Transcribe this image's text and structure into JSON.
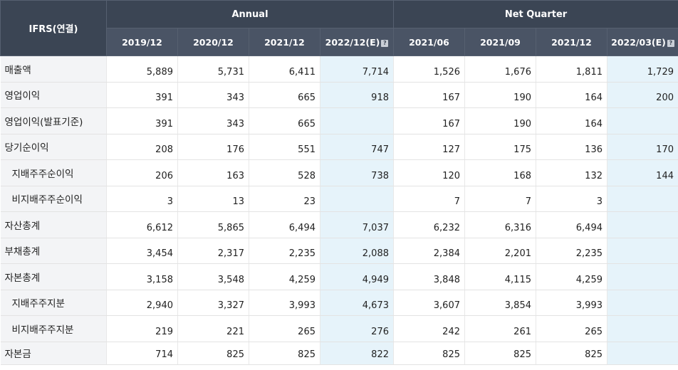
{
  "header": {
    "label": "IFRS(연결)",
    "annual": "Annual",
    "quarter": "Net Quarter",
    "annual_cols": [
      "2019/12",
      "2020/12",
      "2021/12",
      "2022/12(E)"
    ],
    "quarter_cols": [
      "2021/06",
      "2021/09",
      "2021/12",
      "2022/03(E)"
    ]
  },
  "rows": [
    {
      "label": "매출액",
      "values": [
        "5,889",
        "5,731",
        "6,411",
        "7,714",
        "1,526",
        "1,676",
        "1,811",
        "1,729"
      ]
    },
    {
      "label": "영업이익",
      "values": [
        "391",
        "343",
        "665",
        "918",
        "167",
        "190",
        "164",
        "200"
      ]
    },
    {
      "label": "영업이익(발표기준)",
      "values": [
        "391",
        "343",
        "665",
        "",
        "167",
        "190",
        "164",
        ""
      ]
    },
    {
      "label": "당기순이익",
      "values": [
        "208",
        "176",
        "551",
        "747",
        "127",
        "175",
        "136",
        "170"
      ]
    },
    {
      "label": "지배주주순이익",
      "values": [
        "206",
        "163",
        "528",
        "738",
        "120",
        "168",
        "132",
        "144"
      ]
    },
    {
      "label": "비지배주주순이익",
      "values": [
        "3",
        "13",
        "23",
        "",
        "7",
        "7",
        "3",
        ""
      ]
    },
    {
      "label": "자산총계",
      "values": [
        "6,612",
        "5,865",
        "6,494",
        "7,037",
        "6,232",
        "6,316",
        "6,494",
        ""
      ]
    },
    {
      "label": "부채총계",
      "values": [
        "3,454",
        "2,317",
        "2,235",
        "2,088",
        "2,384",
        "2,201",
        "2,235",
        ""
      ]
    },
    {
      "label": "자본총계",
      "values": [
        "3,158",
        "3,548",
        "4,259",
        "4,949",
        "3,848",
        "4,115",
        "4,259",
        ""
      ]
    },
    {
      "label": "지배주주지분",
      "values": [
        "2,940",
        "3,327",
        "3,993",
        "4,673",
        "3,607",
        "3,854",
        "3,993",
        ""
      ]
    },
    {
      "label": "비지배주주지분",
      "values": [
        "219",
        "221",
        "265",
        "276",
        "242",
        "261",
        "265",
        ""
      ]
    },
    {
      "label": "자본금",
      "values": [
        "714",
        "825",
        "825",
        "822",
        "825",
        "825",
        "825",
        ""
      ]
    }
  ]
}
